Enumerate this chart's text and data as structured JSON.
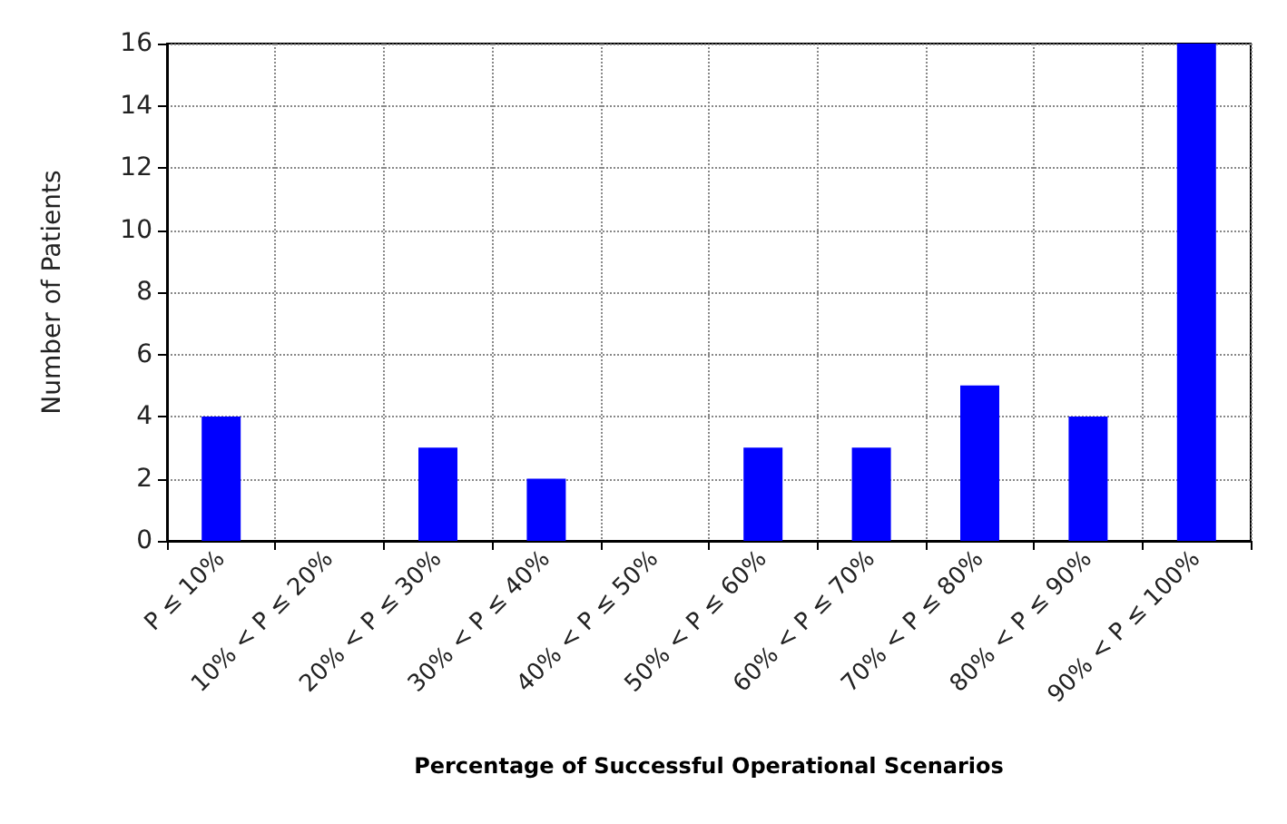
{
  "chart_data": {
    "type": "bar",
    "xlabel": "Percentage of Successful Operational Scenarios",
    "ylabel": "Number of Patients",
    "categories": [
      "P ≤ 10%",
      "10% < P ≤ 20%",
      "20% < P ≤ 30%",
      "30% < P ≤ 40%",
      "40% < P ≤ 50%",
      "50% < P ≤ 60%",
      "60% < P ≤ 70%",
      "70% < P ≤ 80%",
      "80% < P ≤ 90%",
      "90% < P ≤ 100%"
    ],
    "values": [
      4,
      0,
      3,
      2,
      0,
      3,
      3,
      5,
      4,
      16
    ],
    "color": "#0000ff",
    "ylim": [
      0,
      16
    ],
    "yticks": [
      0,
      2,
      4,
      6,
      8,
      10,
      12,
      14,
      16
    ],
    "grid": true
  }
}
